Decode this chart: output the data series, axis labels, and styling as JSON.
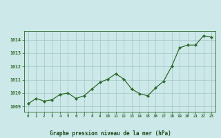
{
  "x": [
    0,
    1,
    2,
    3,
    4,
    5,
    6,
    7,
    8,
    9,
    10,
    11,
    12,
    13,
    14,
    15,
    16,
    17,
    18,
    19,
    20,
    21,
    22,
    23
  ],
  "y": [
    1009.2,
    1009.6,
    1009.4,
    1009.5,
    1009.9,
    1010.0,
    1009.6,
    1009.8,
    1010.3,
    1010.8,
    1011.05,
    1011.45,
    1011.05,
    1010.3,
    1009.95,
    1009.8,
    1010.4,
    1010.9,
    1012.0,
    1013.4,
    1013.6,
    1013.6,
    1014.3,
    1014.2
  ],
  "line_color": "#2d6a2d",
  "marker_color": "#2d6a2d",
  "bg_color": "#cce8e8",
  "grid_color": "#aacccc",
  "xlabel": "Graphe pression niveau de la mer (hPa)",
  "xlabel_color": "#1a4a1a",
  "tick_color": "#2d6a2d",
  "yticks": [
    1009,
    1010,
    1011,
    1012,
    1013,
    1014
  ],
  "xticks": [
    0,
    1,
    2,
    3,
    4,
    5,
    6,
    7,
    8,
    9,
    10,
    11,
    12,
    13,
    14,
    15,
    16,
    17,
    18,
    19,
    20,
    21,
    22,
    23
  ],
  "ylim": [
    1008.6,
    1014.65
  ],
  "xlim": [
    -0.5,
    23.5
  ]
}
